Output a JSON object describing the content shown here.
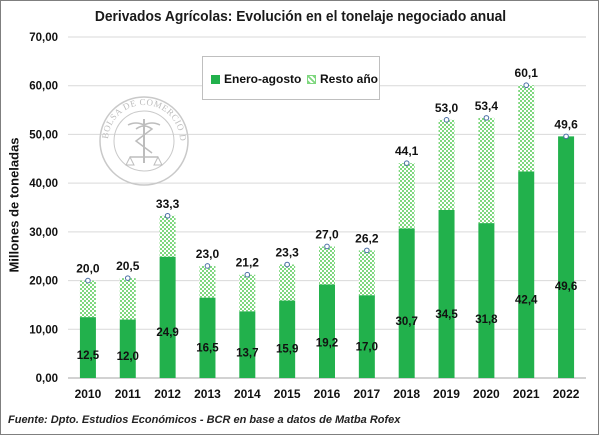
{
  "chart_data": {
    "type": "bar",
    "stacked": true,
    "title": "Derivados Agrícolas: Evolución en el tonelaje negociado anual",
    "xlabel": "",
    "ylabel": "Millones de toneladas",
    "categories": [
      "2010",
      "2011",
      "2012",
      "2013",
      "2014",
      "2015",
      "2016",
      "2017",
      "2018",
      "2019",
      "2020",
      "2021",
      "2022"
    ],
    "series": [
      {
        "name": "Enero-agosto",
        "color": "#22b14c",
        "pattern": "solid",
        "values": [
          12.5,
          12.0,
          24.9,
          16.5,
          13.7,
          15.9,
          19.2,
          17.0,
          30.7,
          34.5,
          31.8,
          42.4,
          49.6
        ],
        "labels": [
          "12,5",
          "12,0",
          "24,9",
          "16,5",
          "13,7",
          "15,9",
          "19,2",
          "17,0",
          "30,7",
          "34,5",
          "31,8",
          "42,4",
          "49,6"
        ]
      },
      {
        "name": "Resto año",
        "color": "#7fd77f",
        "pattern": "hatched",
        "values": [
          7.5,
          8.5,
          8.4,
          6.5,
          7.5,
          7.4,
          7.8,
          9.2,
          13.4,
          18.5,
          21.6,
          17.7,
          0
        ]
      }
    ],
    "totals": [
      20.0,
      20.5,
      33.3,
      23.0,
      21.2,
      23.3,
      27.0,
      26.2,
      44.1,
      53.0,
      53.4,
      60.1,
      49.6
    ],
    "total_labels": [
      "20,0",
      "20,5",
      "33,3",
      "23,0",
      "21,2",
      "23,3",
      "27,0",
      "26,2",
      "44,1",
      "53,0",
      "53,4",
      "60,1",
      "49,6"
    ],
    "ylim": [
      0,
      70
    ],
    "yticks": [
      0,
      10,
      20,
      30,
      40,
      50,
      60,
      70
    ],
    "ytick_labels": [
      "0,00",
      "10,00",
      "20,00",
      "30,00",
      "40,00",
      "50,00",
      "60,00",
      "70,00"
    ],
    "grid": true,
    "legend_position": "top-center"
  },
  "footer": {
    "source": "Fuente: Dpto. Estudios Económicos - BCR en base a datos de Matba Rofex"
  }
}
